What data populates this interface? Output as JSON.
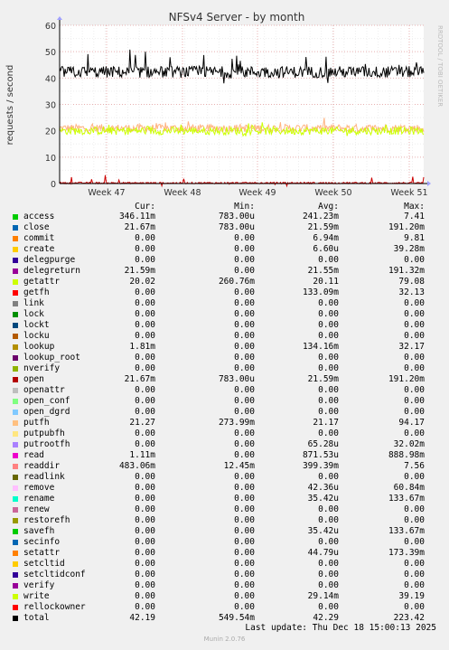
{
  "chart_data": {
    "type": "line",
    "title": "NFSv4 Server - by month",
    "ylabel": "requests / second",
    "watermark": "RRDTOOL / TOBI OETIKER",
    "ylim": [
      0,
      60
    ],
    "yticks": [
      0,
      10,
      20,
      30,
      40,
      50,
      60
    ],
    "xticks": [
      "Week 47",
      "Week 48",
      "Week 49",
      "Week 50",
      "Week 51"
    ],
    "grid": true,
    "series_summary": [
      {
        "name": "total",
        "color": "#000000",
        "approx": 42.29,
        "range": [
          38,
          52
        ]
      },
      {
        "name": "getattr",
        "color": "#ccff00",
        "approx": 20.11,
        "range": [
          17,
          23
        ]
      },
      {
        "name": "putfh",
        "color": "#ffb380",
        "approx": 21.17,
        "range": [
          18,
          25
        ]
      },
      {
        "name": "open",
        "color": "#cc0000",
        "approx": 0.02,
        "range": [
          0,
          3
        ]
      }
    ]
  },
  "legend": {
    "headers": {
      "cur": "Cur:",
      "min": "Min:",
      "avg": "Avg:",
      "max": "Max:"
    },
    "rows": [
      {
        "name": "access",
        "color": "#00cc00",
        "cur": "346.11m",
        "min": "783.00u",
        "avg": "241.23m",
        "max": "7.41"
      },
      {
        "name": "close",
        "color": "#0066b3",
        "cur": "21.67m",
        "min": "783.00u",
        "avg": "21.59m",
        "max": "191.20m"
      },
      {
        "name": "commit",
        "color": "#ff8000",
        "cur": "0.00",
        "min": "0.00",
        "avg": "6.94m",
        "max": "9.81"
      },
      {
        "name": "create",
        "color": "#ffcc00",
        "cur": "0.00",
        "min": "0.00",
        "avg": "6.60u",
        "max": "39.28m"
      },
      {
        "name": "delegpurge",
        "color": "#330099",
        "cur": "0.00",
        "min": "0.00",
        "avg": "0.00",
        "max": "0.00"
      },
      {
        "name": "delegreturn",
        "color": "#990099",
        "cur": "21.59m",
        "min": "0.00",
        "avg": "21.55m",
        "max": "191.32m"
      },
      {
        "name": "getattr",
        "color": "#ccff00",
        "cur": "20.02",
        "min": "260.76m",
        "avg": "20.11",
        "max": "79.08"
      },
      {
        "name": "getfh",
        "color": "#ff0000",
        "cur": "0.00",
        "min": "0.00",
        "avg": "133.09m",
        "max": "32.13"
      },
      {
        "name": "link",
        "color": "#808080",
        "cur": "0.00",
        "min": "0.00",
        "avg": "0.00",
        "max": "0.00"
      },
      {
        "name": "lock",
        "color": "#008f00",
        "cur": "0.00",
        "min": "0.00",
        "avg": "0.00",
        "max": "0.00"
      },
      {
        "name": "lockt",
        "color": "#00487d",
        "cur": "0.00",
        "min": "0.00",
        "avg": "0.00",
        "max": "0.00"
      },
      {
        "name": "locku",
        "color": "#b35a00",
        "cur": "0.00",
        "min": "0.00",
        "avg": "0.00",
        "max": "0.00"
      },
      {
        "name": "lookup",
        "color": "#b38f00",
        "cur": "1.81m",
        "min": "0.00",
        "avg": "134.16m",
        "max": "32.17"
      },
      {
        "name": "lookup_root",
        "color": "#6b006b",
        "cur": "0.00",
        "min": "0.00",
        "avg": "0.00",
        "max": "0.00"
      },
      {
        "name": "nverify",
        "color": "#8fb300",
        "cur": "0.00",
        "min": "0.00",
        "avg": "0.00",
        "max": "0.00"
      },
      {
        "name": "open",
        "color": "#b30000",
        "cur": "21.67m",
        "min": "783.00u",
        "avg": "21.59m",
        "max": "191.20m"
      },
      {
        "name": "openattr",
        "color": "#bebebe",
        "cur": "0.00",
        "min": "0.00",
        "avg": "0.00",
        "max": "0.00"
      },
      {
        "name": "open_conf",
        "color": "#80ff80",
        "cur": "0.00",
        "min": "0.00",
        "avg": "0.00",
        "max": "0.00"
      },
      {
        "name": "open_dgrd",
        "color": "#80c9ff",
        "cur": "0.00",
        "min": "0.00",
        "avg": "0.00",
        "max": "0.00"
      },
      {
        "name": "putfh",
        "color": "#ffc080",
        "cur": "21.27",
        "min": "273.99m",
        "avg": "21.17",
        "max": "94.17"
      },
      {
        "name": "putpubfh",
        "color": "#ffe680",
        "cur": "0.00",
        "min": "0.00",
        "avg": "0.00",
        "max": "0.00"
      },
      {
        "name": "putrootfh",
        "color": "#aa80ff",
        "cur": "0.00",
        "min": "0.00",
        "avg": "65.28u",
        "max": "32.02m"
      },
      {
        "name": "read",
        "color": "#ee00cc",
        "cur": "1.11m",
        "min": "0.00",
        "avg": "871.53u",
        "max": "888.98m"
      },
      {
        "name": "readdir",
        "color": "#ff8080",
        "cur": "483.06m",
        "min": "12.45m",
        "avg": "399.39m",
        "max": "7.56"
      },
      {
        "name": "readlink",
        "color": "#666600",
        "cur": "0.00",
        "min": "0.00",
        "avg": "0.00",
        "max": "0.00"
      },
      {
        "name": "remove",
        "color": "#ffbfff",
        "cur": "0.00",
        "min": "0.00",
        "avg": "42.36u",
        "max": "60.84m"
      },
      {
        "name": "rename",
        "color": "#00ffcc",
        "cur": "0.00",
        "min": "0.00",
        "avg": "35.42u",
        "max": "133.67m"
      },
      {
        "name": "renew",
        "color": "#cc6699",
        "cur": "0.00",
        "min": "0.00",
        "avg": "0.00",
        "max": "0.00"
      },
      {
        "name": "restorefh",
        "color": "#999900",
        "cur": "0.00",
        "min": "0.00",
        "avg": "0.00",
        "max": "0.00"
      },
      {
        "name": "savefh",
        "color": "#00cc00",
        "cur": "0.00",
        "min": "0.00",
        "avg": "35.42u",
        "max": "133.67m"
      },
      {
        "name": "secinfo",
        "color": "#0066b3",
        "cur": "0.00",
        "min": "0.00",
        "avg": "0.00",
        "max": "0.00"
      },
      {
        "name": "setattr",
        "color": "#ff8000",
        "cur": "0.00",
        "min": "0.00",
        "avg": "44.79u",
        "max": "173.39m"
      },
      {
        "name": "setcltid",
        "color": "#ffcc00",
        "cur": "0.00",
        "min": "0.00",
        "avg": "0.00",
        "max": "0.00"
      },
      {
        "name": "setcltidconf",
        "color": "#330099",
        "cur": "0.00",
        "min": "0.00",
        "avg": "0.00",
        "max": "0.00"
      },
      {
        "name": "verify",
        "color": "#990099",
        "cur": "0.00",
        "min": "0.00",
        "avg": "0.00",
        "max": "0.00"
      },
      {
        "name": "write",
        "color": "#ccff00",
        "cur": "0.00",
        "min": "0.00",
        "avg": "29.14m",
        "max": "39.19"
      },
      {
        "name": "rellockowner",
        "color": "#ff0000",
        "cur": "0.00",
        "min": "0.00",
        "avg": "0.00",
        "max": "0.00"
      },
      {
        "name": "total",
        "color": "#000000",
        "cur": "42.19",
        "min": "549.54m",
        "avg": "42.29",
        "max": "223.42"
      }
    ]
  },
  "last_update": "Last update: Thu Dec 18 15:00:13 2025",
  "munin_version": "Munin 2.0.76"
}
